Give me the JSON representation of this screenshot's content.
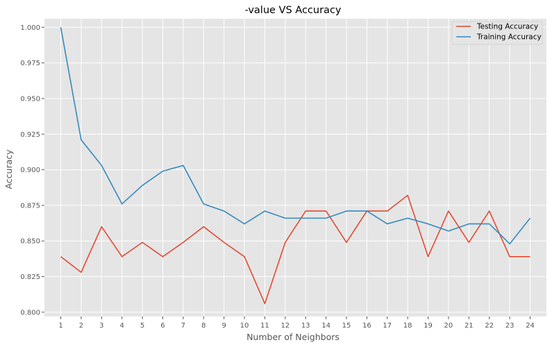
{
  "chart_data": {
    "type": "line",
    "title": "-value VS Accuracy",
    "xlabel": "Number of Neighbors",
    "ylabel": "Accuracy",
    "x": [
      1,
      2,
      3,
      4,
      5,
      6,
      7,
      8,
      9,
      10,
      11,
      12,
      13,
      14,
      15,
      16,
      17,
      18,
      19,
      20,
      21,
      22,
      23,
      24
    ],
    "xlim": [
      0.2,
      24.8
    ],
    "ylim": [
      0.797,
      1.006
    ],
    "yticks": [
      0.8,
      0.825,
      0.85,
      0.875,
      0.9,
      0.925,
      0.95,
      0.975,
      1.0
    ],
    "ytick_labels": [
      "0.800",
      "0.825",
      "0.850",
      "0.875",
      "0.900",
      "0.925",
      "0.950",
      "0.975",
      "1.000"
    ],
    "grid": true,
    "legend_position": "top-right",
    "series": [
      {
        "name": "Testing Accuracy",
        "color": "#E24A33",
        "values": [
          0.839,
          0.828,
          0.86,
          0.839,
          0.849,
          0.839,
          0.849,
          0.86,
          0.849,
          0.839,
          0.806,
          0.849,
          0.871,
          0.871,
          0.849,
          0.871,
          0.871,
          0.882,
          0.839,
          0.871,
          0.849,
          0.871,
          0.839,
          0.839
        ]
      },
      {
        "name": "Training Accuracy",
        "color": "#348ABD",
        "values": [
          1.0,
          0.921,
          0.903,
          0.876,
          0.889,
          0.899,
          0.903,
          0.876,
          0.871,
          0.862,
          0.871,
          0.866,
          0.866,
          0.866,
          0.871,
          0.871,
          0.862,
          0.866,
          0.862,
          0.857,
          0.862,
          0.862,
          0.848,
          0.866
        ]
      }
    ]
  }
}
